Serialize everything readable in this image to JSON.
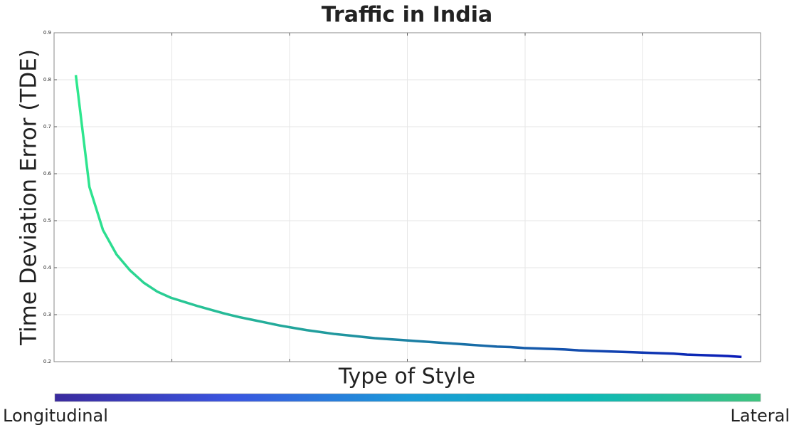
{
  "chart_data": {
    "type": "line",
    "title": "Traffic in India",
    "xlabel": "Type of Style",
    "ylabel": "Time Deviation Error (TDE)",
    "x": [
      1,
      2,
      3,
      4,
      5,
      6,
      7,
      8,
      9,
      10,
      11,
      12,
      13,
      14,
      15,
      16,
      17,
      18,
      19,
      20,
      21,
      22,
      23,
      24,
      25,
      26,
      27,
      28,
      29,
      30,
      31,
      32,
      33,
      34,
      35,
      36,
      37,
      38,
      39,
      40,
      41,
      42,
      43,
      44,
      45,
      46,
      47,
      48,
      49,
      50
    ],
    "series": [
      {
        "colors": [
          "#2ee88e",
          "#0a1ab8"
        ],
        "values": [
          0.81,
          0.572,
          0.48,
          0.428,
          0.394,
          0.368,
          0.349,
          0.336,
          0.327,
          0.318,
          0.31,
          0.302,
          0.295,
          0.289,
          0.283,
          0.277,
          0.272,
          0.267,
          0.263,
          0.259,
          0.256,
          0.253,
          0.25,
          0.248,
          0.246,
          0.244,
          0.242,
          0.24,
          0.238,
          0.236,
          0.234,
          0.232,
          0.231,
          0.229,
          0.228,
          0.227,
          0.226,
          0.224,
          0.223,
          0.222,
          0.221,
          0.22,
          0.219,
          0.218,
          0.217,
          0.215,
          0.214,
          0.213,
          0.212,
          0.21
        ]
      }
    ],
    "xlim": [
      -0.6,
      51.4
    ],
    "xticks": [
      8.07,
      16.73,
      25.4,
      34.07,
      42.73
    ],
    "ylim": [
      0.2,
      0.9
    ],
    "yticks": [
      0.2,
      0.3,
      0.4,
      0.5,
      0.6,
      0.7,
      0.8,
      0.9
    ],
    "grid": true,
    "colorbar": {
      "labels": [
        "Longitudinal",
        "Lateral"
      ],
      "colors": [
        "#3a2a9e",
        "#3a55e0",
        "#1a9ad8",
        "#0cb8b8",
        "#3ec47e"
      ]
    }
  }
}
